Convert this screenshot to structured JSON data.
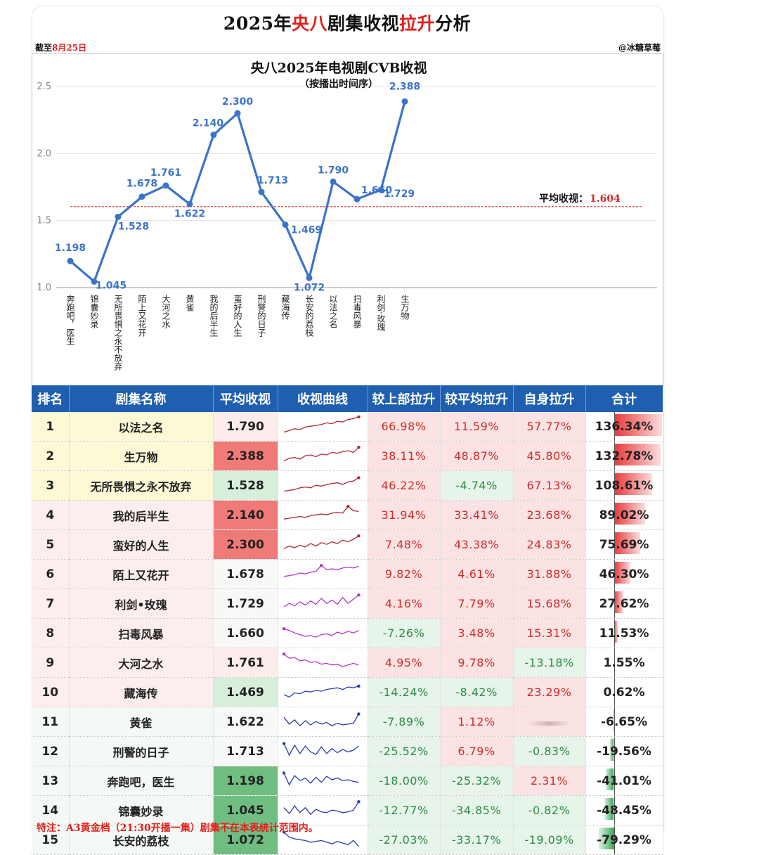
{
  "header": {
    "title_prefix": "2025年",
    "title_red1": "央八",
    "title_mid": "剧集收视",
    "title_red2": "拉升",
    "title_suffix": "分析",
    "date_prefix": "截至",
    "date_red": "8月25日",
    "author": "@冰糖草莓"
  },
  "chart_data": {
    "type": "line",
    "title": "央八2025年电视剧CVB收视",
    "subtitle": "（按播出时间序）",
    "categories": [
      "奔跑吧，医生",
      "锦囊妙录",
      "无所畏惧之永不放弃",
      "陌上又花开",
      "大河之水",
      "黄雀",
      "我的后半生",
      "蛮好的人生",
      "刑警的日子",
      "藏海传",
      "长安的荔枝",
      "以法之名",
      "扫毒风暴",
      "利剑·玫瑰",
      "生万物"
    ],
    "values": [
      1.198,
      1.045,
      1.528,
      1.678,
      1.761,
      1.622,
      2.14,
      2.3,
      1.713,
      1.469,
      1.072,
      1.79,
      1.66,
      1.729,
      2.388
    ],
    "value_labels": [
      "1.198",
      "1.045",
      "1.528",
      "1.678",
      "1.761",
      "1.622",
      "2.140",
      "2.300",
      "1.713",
      "1.469",
      "1.072",
      "1.790",
      "1.660",
      "1.729",
      "2.388"
    ],
    "ylim": [
      1.0,
      2.5
    ],
    "yticks": [
      "1.0",
      "1.5",
      "2.0",
      "2.5"
    ],
    "average": 1.604,
    "average_label": "平均收视：",
    "average_value_label": "1.604",
    "line_color": "#3b73c8",
    "avg_color": "#d9282a"
  },
  "table": {
    "headers": [
      "排名",
      "剧集名称",
      "平均收视",
      "收视曲线",
      "较上部拉升",
      "较平均拉升",
      "自身拉升",
      "合计"
    ],
    "rows": [
      {
        "rank": "1",
        "name": "以法之名",
        "avg": "1.790",
        "prev": "66.98%",
        "vsavg": "11.59%",
        "self": "57.77%",
        "total": "136.34%",
        "total_value": 136.34
      },
      {
        "rank": "2",
        "name": "生万物",
        "avg": "2.388",
        "prev": "38.11%",
        "vsavg": "48.87%",
        "self": "45.80%",
        "total": "132.78%",
        "total_value": 132.78
      },
      {
        "rank": "3",
        "name": "无所畏惧之永不放弃",
        "avg": "1.528",
        "prev": "46.22%",
        "vsavg": "-4.74%",
        "self": "67.13%",
        "total": "108.61%",
        "total_value": 108.61
      },
      {
        "rank": "4",
        "name": "我的后半生",
        "avg": "2.140",
        "prev": "31.94%",
        "vsavg": "33.41%",
        "self": "23.68%",
        "total": "89.02%",
        "total_value": 89.02
      },
      {
        "rank": "5",
        "name": "蛮好的人生",
        "avg": "2.300",
        "prev": "7.48%",
        "vsavg": "43.38%",
        "self": "24.83%",
        "total": "75.69%",
        "total_value": 75.69
      },
      {
        "rank": "6",
        "name": "陌上又花开",
        "avg": "1.678",
        "prev": "9.82%",
        "vsavg": "4.61%",
        "self": "31.88%",
        "total": "46.30%",
        "total_value": 46.3
      },
      {
        "rank": "7",
        "name": "利剑•玫瑰",
        "avg": "1.729",
        "prev": "4.16%",
        "vsavg": "7.79%",
        "self": "15.68%",
        "total": "27.62%",
        "total_value": 27.62
      },
      {
        "rank": "8",
        "name": "扫毒风暴",
        "avg": "1.660",
        "prev": "-7.26%",
        "vsavg": "3.48%",
        "self": "15.31%",
        "total": "11.53%",
        "total_value": 11.53
      },
      {
        "rank": "9",
        "name": "大河之水",
        "avg": "1.761",
        "prev": "4.95%",
        "vsavg": "9.78%",
        "self": "-13.18%",
        "total": "1.55%",
        "total_value": 1.55
      },
      {
        "rank": "10",
        "name": "藏海传",
        "avg": "1.469",
        "prev": "-14.24%",
        "vsavg": "-8.42%",
        "self": "23.29%",
        "total": "0.62%",
        "total_value": 0.62
      },
      {
        "rank": "11",
        "name": "黄雀",
        "avg": "1.622",
        "prev": "-7.89%",
        "vsavg": "1.12%",
        "self": "",
        "total": "-6.65%",
        "total_value": -6.65
      },
      {
        "rank": "12",
        "name": "刑警的日子",
        "avg": "1.713",
        "prev": "-25.52%",
        "vsavg": "6.79%",
        "self": "-0.83%",
        "total": "-19.56%",
        "total_value": -19.56
      },
      {
        "rank": "13",
        "name": "奔跑吧，医生",
        "avg": "1.198",
        "prev": "-18.00%",
        "vsavg": "-25.32%",
        "self": "2.31%",
        "total": "-41.01%",
        "total_value": -41.01
      },
      {
        "rank": "14",
        "name": "锦囊妙录",
        "avg": "1.045",
        "prev": "-12.77%",
        "vsavg": "-34.85%",
        "self": "-0.82%",
        "total": "-48.45%",
        "total_value": -48.45
      },
      {
        "rank": "15",
        "name": "长安的荔枝",
        "avg": "1.072",
        "prev": "-27.03%",
        "vsavg": "-33.17%",
        "self": "-19.09%",
        "total": "-79.29%",
        "total_value": -79.29
      }
    ]
  },
  "footnote": "特注：A3黄金档（21:30开播一集）剧集不在本表统计范围内。",
  "colors": {
    "header_blue": "#1f5fb0",
    "red_text": "#e0201b",
    "pos_bg": "#fbe3e3",
    "neg_bg": "#e6f4e9",
    "pos_text": "#d12a2a",
    "neg_text": "#2e8a45"
  }
}
